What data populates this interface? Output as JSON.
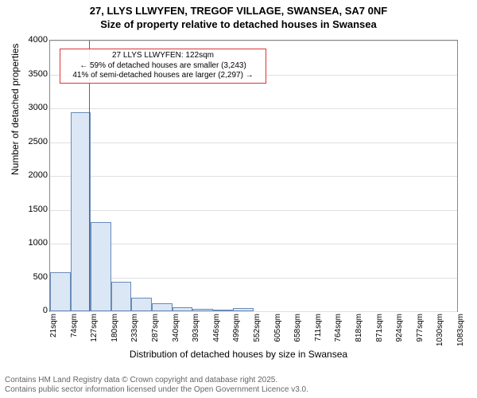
{
  "title_line1": "27, LLYS LLWYFEN, TREGOF VILLAGE, SWANSEA, SA7 0NF",
  "title_line2": "Size of property relative to detached houses in Swansea",
  "chart": {
    "type": "histogram",
    "background_color": "#ffffff",
    "grid_color": "#e0e0e0",
    "bar_fill": "#dbe7f5",
    "bar_stroke": "#6a8bb8",
    "marker_color": "#dd3333",
    "ylabel": "Number of detached properties",
    "xlabel": "Distribution of detached houses by size in Swansea",
    "ylim": [
      0,
      4000
    ],
    "yticks": [
      0,
      500,
      1000,
      1500,
      2000,
      2500,
      3000,
      3500,
      4000
    ],
    "xtick_step": 53,
    "xtick_start": 21,
    "xticks": [
      "21sqm",
      "74sqm",
      "127sqm",
      "180sqm",
      "233sqm",
      "287sqm",
      "340sqm",
      "393sqm",
      "446sqm",
      "499sqm",
      "552sqm",
      "605sqm",
      "658sqm",
      "711sqm",
      "764sqm",
      "818sqm",
      "871sqm",
      "924sqm",
      "977sqm",
      "1030sqm",
      "1083sqm"
    ],
    "values": [
      580,
      2940,
      1320,
      440,
      200,
      120,
      60,
      40,
      25,
      50,
      0,
      0,
      0,
      0,
      0,
      0,
      0,
      0,
      0,
      0
    ],
    "annotation": {
      "line1": "27 LLYS LLWYFEN: 122sqm",
      "line2": "← 59% of detached houses are smaller (3,243)",
      "line3": "41% of semi-detached houses are larger (2,297) →",
      "marker_value": 122
    }
  },
  "footer_line1": "Contains HM Land Registry data © Crown copyright and database right 2025.",
  "footer_line2": "Contains public sector information licensed under the Open Government Licence v3.0."
}
